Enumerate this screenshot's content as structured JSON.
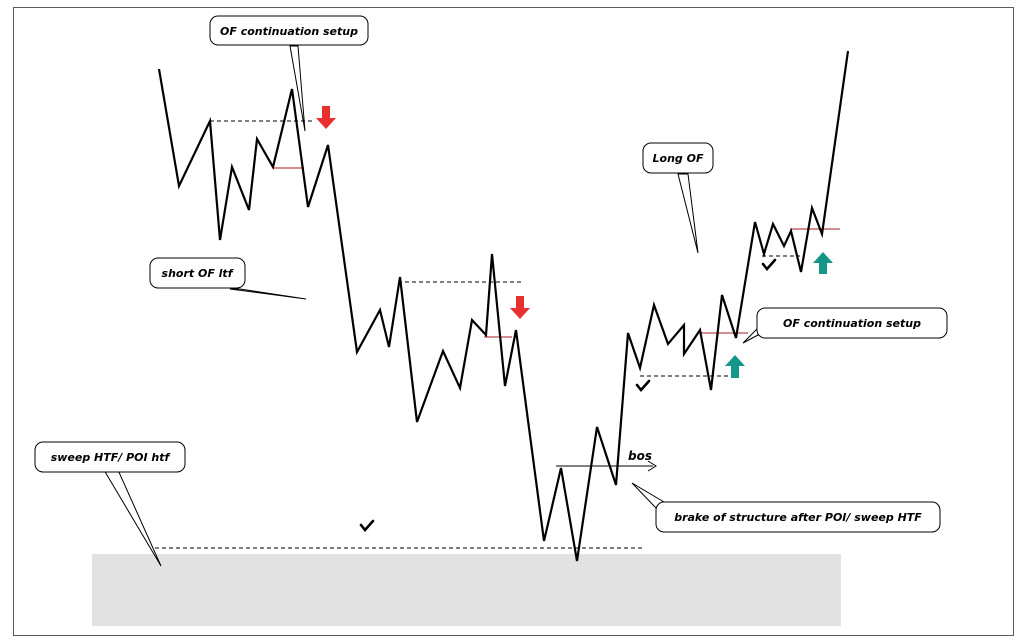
{
  "callouts": {
    "of_continuation_top": "OF continuation setup",
    "long_of": "Long OF",
    "short_of_ltf": "short OF ltf",
    "of_continuation_right": "OF continuation setup",
    "sweep_htf": "sweep HTF/ POI htf",
    "brake_of_structure": "brake of structure after POI/ sweep HTF"
  },
  "labels": {
    "bos": "bos"
  },
  "colors": {
    "price_line": "#000000",
    "poi_zone": "#e2e2e2",
    "short_arrow": "#e8312f",
    "long_arrow": "#15968a",
    "level_line": "#a61c1c"
  },
  "icons": [
    "checkmark-icon",
    "arrow-down-icon",
    "arrow-up-icon"
  ]
}
